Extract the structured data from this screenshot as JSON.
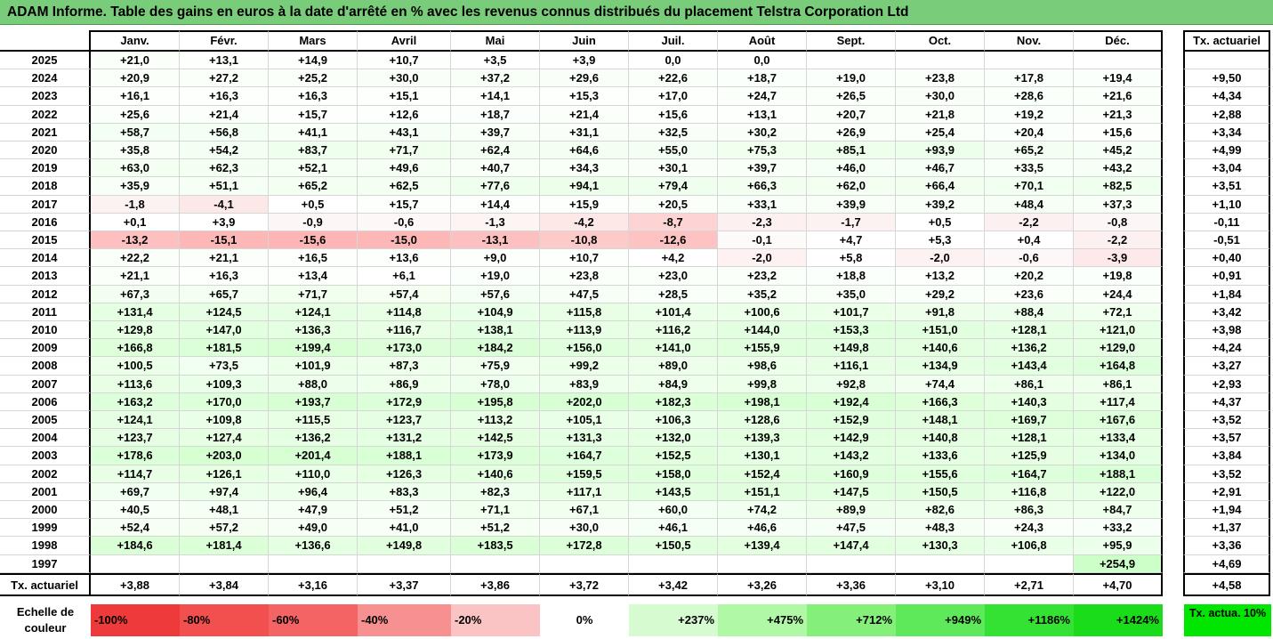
{
  "title": "ADAM Informe. Table des gains en euros à la date d'arrêté en % avec les revenus connus distribués du placement Telstra Corporation Ltd",
  "headers": {
    "months": [
      "Janv.",
      "Févr.",
      "Mars",
      "Avril",
      "Mai",
      "Juin",
      "Juil.",
      "Août",
      "Sept.",
      "Oct.",
      "Nov.",
      "Déc."
    ],
    "rate": "Tx. actuariel"
  },
  "rows": [
    {
      "year": "2025",
      "values": [
        "+21,0",
        "+13,1",
        "+14,9",
        "+10,7",
        "+3,5",
        "+3,9",
        "0,0",
        "0,0",
        "",
        "",
        "",
        ""
      ],
      "rate": ""
    },
    {
      "year": "2024",
      "values": [
        "+20,9",
        "+27,2",
        "+25,2",
        "+30,0",
        "+37,2",
        "+29,6",
        "+22,6",
        "+18,7",
        "+19,0",
        "+23,8",
        "+17,8",
        "+19,4"
      ],
      "rate": "+9,50"
    },
    {
      "year": "2023",
      "values": [
        "+16,1",
        "+16,3",
        "+16,3",
        "+15,1",
        "+14,1",
        "+15,3",
        "+17,0",
        "+24,7",
        "+26,5",
        "+30,0",
        "+28,6",
        "+21,6"
      ],
      "rate": "+4,34"
    },
    {
      "year": "2022",
      "values": [
        "+25,6",
        "+21,4",
        "+15,7",
        "+12,6",
        "+18,7",
        "+21,4",
        "+15,6",
        "+13,1",
        "+20,7",
        "+21,8",
        "+19,2",
        "+21,3"
      ],
      "rate": "+2,88"
    },
    {
      "year": "2021",
      "values": [
        "+58,7",
        "+56,8",
        "+41,1",
        "+43,1",
        "+39,7",
        "+31,1",
        "+32,5",
        "+30,2",
        "+26,9",
        "+25,4",
        "+20,4",
        "+15,6"
      ],
      "rate": "+3,34"
    },
    {
      "year": "2020",
      "values": [
        "+35,8",
        "+54,2",
        "+83,7",
        "+71,7",
        "+62,4",
        "+64,6",
        "+55,0",
        "+75,3",
        "+85,1",
        "+93,9",
        "+65,2",
        "+45,2"
      ],
      "rate": "+4,99"
    },
    {
      "year": "2019",
      "values": [
        "+63,0",
        "+62,3",
        "+52,1",
        "+49,6",
        "+40,7",
        "+34,3",
        "+30,1",
        "+39,7",
        "+46,0",
        "+46,7",
        "+33,5",
        "+43,2"
      ],
      "rate": "+3,04"
    },
    {
      "year": "2018",
      "values": [
        "+35,9",
        "+51,1",
        "+65,2",
        "+62,5",
        "+77,6",
        "+94,1",
        "+79,4",
        "+66,3",
        "+62,0",
        "+66,4",
        "+70,1",
        "+82,5"
      ],
      "rate": "+3,51"
    },
    {
      "year": "2017",
      "values": [
        "-1,8",
        "-4,1",
        "+0,5",
        "+15,7",
        "+14,4",
        "+15,9",
        "+20,5",
        "+33,1",
        "+39,9",
        "+39,2",
        "+48,4",
        "+37,3"
      ],
      "rate": "+1,10"
    },
    {
      "year": "2016",
      "values": [
        "+0,1",
        "+3,9",
        "-0,9",
        "-0,6",
        "-1,3",
        "-4,2",
        "-8,7",
        "-2,3",
        "-1,7",
        "+0,5",
        "-2,2",
        "-0,8"
      ],
      "rate": "-0,11"
    },
    {
      "year": "2015",
      "values": [
        "-13,2",
        "-15,1",
        "-15,6",
        "-15,0",
        "-13,1",
        "-10,8",
        "-12,6",
        "-0,1",
        "+4,7",
        "+5,3",
        "+0,4",
        "-2,2"
      ],
      "rate": "-0,51"
    },
    {
      "year": "2014",
      "values": [
        "+22,2",
        "+21,1",
        "+16,5",
        "+13,6",
        "+9,0",
        "+10,7",
        "+4,2",
        "-2,0",
        "+5,8",
        "-2,0",
        "-0,6",
        "-3,9"
      ],
      "rate": "+0,40"
    },
    {
      "year": "2013",
      "values": [
        "+21,1",
        "+16,3",
        "+13,4",
        "+6,1",
        "+19,0",
        "+23,8",
        "+23,0",
        "+23,2",
        "+18,8",
        "+13,2",
        "+20,2",
        "+19,8"
      ],
      "rate": "+0,91"
    },
    {
      "year": "2012",
      "values": [
        "+67,3",
        "+65,7",
        "+71,7",
        "+57,4",
        "+57,6",
        "+47,5",
        "+28,5",
        "+35,2",
        "+35,0",
        "+29,2",
        "+23,6",
        "+24,4"
      ],
      "rate": "+1,84"
    },
    {
      "year": "2011",
      "values": [
        "+131,4",
        "+124,5",
        "+124,1",
        "+114,8",
        "+104,9",
        "+115,8",
        "+101,4",
        "+100,6",
        "+101,7",
        "+91,8",
        "+88,4",
        "+72,1"
      ],
      "rate": "+3,42"
    },
    {
      "year": "2010",
      "values": [
        "+129,8",
        "+147,0",
        "+136,3",
        "+116,7",
        "+138,1",
        "+113,9",
        "+116,2",
        "+144,0",
        "+153,3",
        "+151,0",
        "+128,1",
        "+121,0"
      ],
      "rate": "+3,98"
    },
    {
      "year": "2009",
      "values": [
        "+166,8",
        "+181,5",
        "+199,4",
        "+173,0",
        "+184,2",
        "+156,0",
        "+141,0",
        "+155,9",
        "+149,8",
        "+140,6",
        "+136,2",
        "+129,0"
      ],
      "rate": "+4,24"
    },
    {
      "year": "2008",
      "values": [
        "+100,5",
        "+73,5",
        "+101,9",
        "+87,3",
        "+75,9",
        "+99,2",
        "+89,0",
        "+98,6",
        "+116,1",
        "+134,9",
        "+143,4",
        "+164,8"
      ],
      "rate": "+3,27"
    },
    {
      "year": "2007",
      "values": [
        "+113,6",
        "+109,3",
        "+88,0",
        "+86,9",
        "+78,0",
        "+83,9",
        "+84,9",
        "+99,8",
        "+92,8",
        "+74,4",
        "+86,1",
        "+86,1"
      ],
      "rate": "+2,93"
    },
    {
      "year": "2006",
      "values": [
        "+163,2",
        "+170,0",
        "+193,7",
        "+172,9",
        "+195,8",
        "+202,0",
        "+182,3",
        "+198,1",
        "+192,4",
        "+166,3",
        "+140,3",
        "+117,4"
      ],
      "rate": "+4,37"
    },
    {
      "year": "2005",
      "values": [
        "+124,1",
        "+109,8",
        "+115,5",
        "+123,7",
        "+113,2",
        "+105,1",
        "+106,3",
        "+128,6",
        "+152,9",
        "+148,1",
        "+169,7",
        "+167,6"
      ],
      "rate": "+3,52"
    },
    {
      "year": "2004",
      "values": [
        "+123,7",
        "+127,4",
        "+136,2",
        "+131,2",
        "+142,5",
        "+131,3",
        "+132,0",
        "+139,3",
        "+142,9",
        "+140,8",
        "+128,1",
        "+133,4"
      ],
      "rate": "+3,57"
    },
    {
      "year": "2003",
      "values": [
        "+178,6",
        "+203,0",
        "+201,4",
        "+188,1",
        "+173,9",
        "+164,7",
        "+152,5",
        "+130,1",
        "+143,2",
        "+133,6",
        "+125,9",
        "+134,0"
      ],
      "rate": "+3,84"
    },
    {
      "year": "2002",
      "values": [
        "+114,7",
        "+126,1",
        "+110,0",
        "+126,3",
        "+140,6",
        "+159,5",
        "+158,0",
        "+152,4",
        "+160,9",
        "+155,6",
        "+164,7",
        "+188,1"
      ],
      "rate": "+3,52"
    },
    {
      "year": "2001",
      "values": [
        "+69,7",
        "+97,4",
        "+96,4",
        "+83,3",
        "+82,3",
        "+117,1",
        "+143,5",
        "+151,1",
        "+147,5",
        "+150,5",
        "+116,8",
        "+122,0"
      ],
      "rate": "+2,91"
    },
    {
      "year": "2000",
      "values": [
        "+40,5",
        "+48,1",
        "+47,9",
        "+51,2",
        "+71,1",
        "+67,1",
        "+60,0",
        "+74,2",
        "+89,9",
        "+82,6",
        "+86,3",
        "+84,7"
      ],
      "rate": "+1,94"
    },
    {
      "year": "1999",
      "values": [
        "+52,4",
        "+57,2",
        "+49,0",
        "+41,0",
        "+51,2",
        "+30,0",
        "+46,1",
        "+46,6",
        "+47,5",
        "+48,3",
        "+24,3",
        "+33,2"
      ],
      "rate": "+1,37"
    },
    {
      "year": "1998",
      "values": [
        "+184,6",
        "+181,4",
        "+136,6",
        "+149,8",
        "+183,5",
        "+172,8",
        "+150,5",
        "+139,4",
        "+147,4",
        "+130,3",
        "+106,8",
        "+95,9"
      ],
      "rate": "+3,36"
    },
    {
      "year": "1997",
      "values": [
        "",
        "",
        "",
        "",
        "",
        "",
        "",
        "",
        "",
        "",
        "",
        "+254,9"
      ],
      "rate": "+4,69"
    }
  ],
  "footer": {
    "label": "Tx. actuariel",
    "values": [
      "+3,88",
      "+3,84",
      "+3,16",
      "+3,37",
      "+3,86",
      "+3,72",
      "+3,42",
      "+3,26",
      "+3,36",
      "+3,10",
      "+2,71",
      "+4,70"
    ],
    "rate": "+4,58"
  },
  "legend": {
    "label": "Echelle de couleur",
    "steps": [
      {
        "text": "-100%",
        "color": "#ee3a3a",
        "align": "left"
      },
      {
        "text": "-80%",
        "color": "#f24f4f",
        "align": "left"
      },
      {
        "text": "-60%",
        "color": "#f46464",
        "align": "left"
      },
      {
        "text": "-40%",
        "color": "#f79191",
        "align": "left"
      },
      {
        "text": "-20%",
        "color": "#fbc4c4",
        "align": "left"
      },
      {
        "text": "0%",
        "color": "#ffffff",
        "align": "center"
      },
      {
        "text": "+237%",
        "color": "#d6fbd1",
        "align": "right"
      },
      {
        "text": "+475%",
        "color": "#b0f7a6",
        "align": "right"
      },
      {
        "text": "+712%",
        "color": "#84f07a",
        "align": "right"
      },
      {
        "text": "+949%",
        "color": "#5ee95a",
        "align": "right"
      },
      {
        "text": "+1186%",
        "color": "#34e233",
        "align": "right"
      },
      {
        "text": "+1424%",
        "color": "#1bdc1b",
        "align": "right"
      }
    ],
    "tx_label": "Tx. actua. 10%"
  }
}
